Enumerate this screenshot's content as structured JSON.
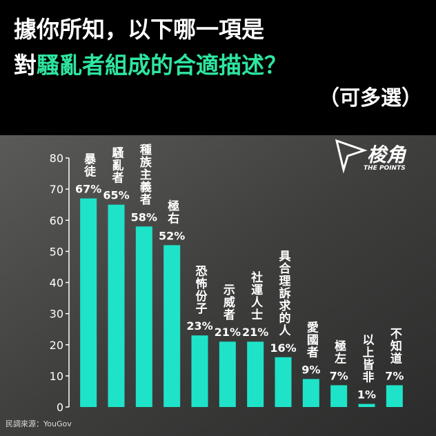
{
  "chart_data": {
    "type": "bar",
    "title_line1": "據你所知，以下哪一項是",
    "title_line2_prefix": "對",
    "title_line2_highlight": "騷亂者組成的合適描述？",
    "subtitle": "（可多選）",
    "logo": "梭角",
    "logo_tagline": "THE POINTS",
    "source": "民調來源：YouGov",
    "categories": [
      "暴徒",
      "騷亂者",
      "種族主義者",
      "極右",
      "恐怖份子",
      "示威者",
      "社運人士",
      "具合理訴求的人",
      "愛國者",
      "極左",
      "以上皆非",
      "不知道"
    ],
    "values": [
      67,
      65,
      58,
      52,
      23,
      21,
      21,
      16,
      9,
      7,
      1,
      7
    ],
    "value_labels": [
      "67%",
      "65%",
      "58%",
      "52%",
      "23%",
      "21%",
      "21%",
      "16%",
      "9%",
      "7%",
      "1%",
      "7%"
    ],
    "color": "#1ee3c9",
    "highlight_color": "#2ee6a0",
    "ylim": [
      0,
      80
    ],
    "yticks": [
      0,
      10,
      20,
      30,
      40,
      50,
      60,
      70,
      80
    ]
  }
}
